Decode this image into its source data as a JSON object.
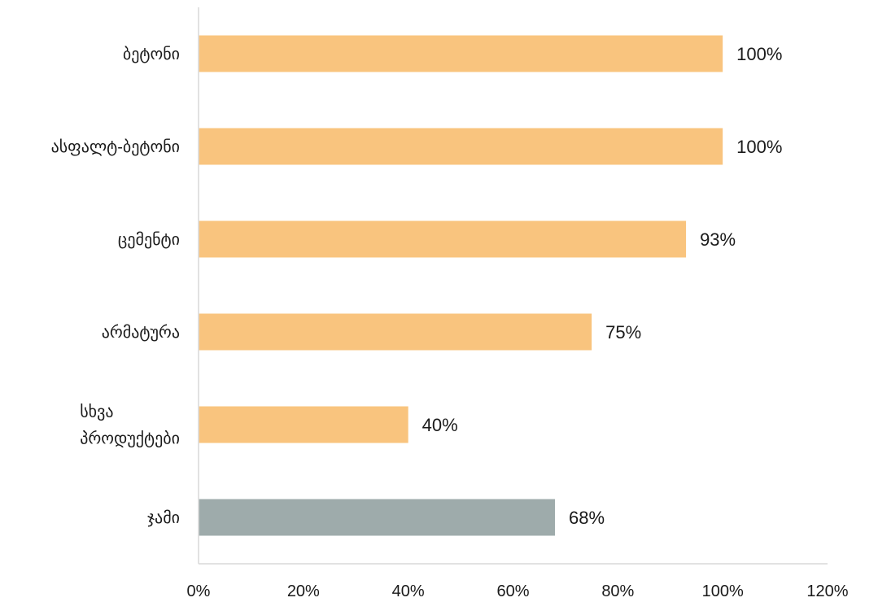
{
  "chart_data": {
    "type": "bar",
    "orientation": "horizontal",
    "categories": [
      [
        "ბეტონი"
      ],
      [
        "ასფალტ-ბეტონი"
      ],
      [
        "ცემენტი"
      ],
      [
        "არმატურა"
      ],
      [
        "სხვა",
        "პროდუქტები"
      ],
      [
        "ჯამი"
      ]
    ],
    "values": [
      100,
      100,
      93,
      75,
      40,
      68
    ],
    "value_labels": [
      "100%",
      "100%",
      "93%",
      "75%",
      "40%",
      "68%"
    ],
    "bar_colors": [
      "#f9c47e",
      "#f9c47e",
      "#f9c47e",
      "#f9c47e",
      "#f9c47e",
      "#9eabab"
    ],
    "x_ticks": [
      0,
      20,
      40,
      60,
      80,
      100,
      120
    ],
    "x_tick_labels": [
      "0%",
      "20%",
      "40%",
      "60%",
      "80%",
      "100%",
      "120%"
    ],
    "xlim": [
      0,
      120
    ],
    "title": "",
    "xlabel": "",
    "ylabel": "",
    "grid": false,
    "legend": "none"
  }
}
